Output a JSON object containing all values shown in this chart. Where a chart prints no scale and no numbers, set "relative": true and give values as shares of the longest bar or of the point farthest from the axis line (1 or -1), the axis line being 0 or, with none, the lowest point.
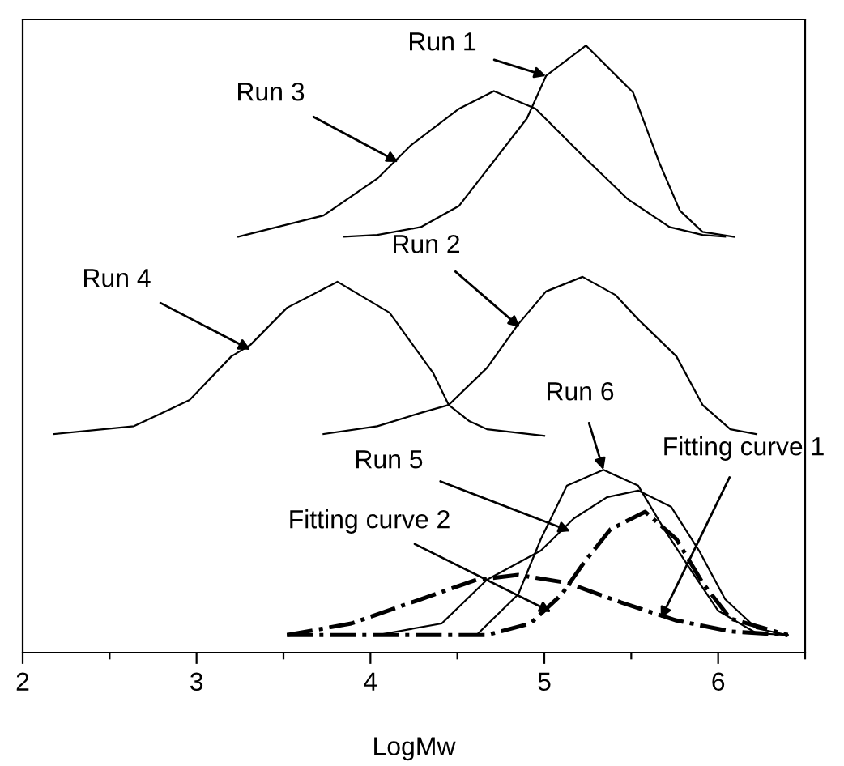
{
  "chart_data": {
    "type": "line",
    "relative": true,
    "xlabel": "LogMw",
    "xlim": [
      2,
      6.5
    ],
    "xticks": [
      2,
      {
        "value": 2.5,
        "label": null
      },
      3,
      {
        "value": 3.5,
        "label": null
      },
      4,
      {
        "value": 4.5,
        "label": null
      },
      5,
      {
        "value": 5.5,
        "label": null
      },
      6,
      {
        "value": 6.5,
        "label": null
      }
    ],
    "tick_labels": "x",
    "grid": false,
    "legend": false,
    "marker": "none",
    "series": [
      {
        "color": "#000000",
        "line_style": "solid",
        "x": [
          3.85,
          4.04,
          4.29,
          4.51,
          4.9,
          5.01,
          5.24,
          5.51,
          5.66,
          5.78,
          5.91,
          6.09
        ],
        "values": [
          0.685,
          0.688,
          0.701,
          0.736,
          0.88,
          0.95,
          1.0,
          0.923,
          0.808,
          0.728,
          0.693,
          0.685
        ]
      },
      {
        "color": "#000000",
        "line_style": "solid",
        "x": [
          3.24,
          3.73,
          4.04,
          4.23,
          4.51,
          4.71,
          4.95,
          5.23,
          5.48,
          5.72,
          5.91,
          6.04
        ],
        "values": [
          0.685,
          0.72,
          0.781,
          0.835,
          0.896,
          0.925,
          0.896,
          0.816,
          0.747,
          0.701,
          0.688,
          0.685
        ]
      },
      {
        "color": "#000000",
        "line_style": "solid",
        "x": [
          2.18,
          2.64,
          2.96,
          3.2,
          3.31,
          3.52,
          3.81,
          4.11,
          4.36,
          4.45,
          4.57,
          4.67,
          5.0
        ],
        "values": [
          0.36,
          0.373,
          0.416,
          0.488,
          0.507,
          0.568,
          0.611,
          0.56,
          0.461,
          0.408,
          0.381,
          0.368,
          0.357
        ]
      },
      {
        "color": "#000000",
        "line_style": "solid",
        "x": [
          3.73,
          4.04,
          4.29,
          4.45,
          4.67,
          4.85,
          5.01,
          5.22,
          5.41,
          5.54,
          5.76,
          5.91,
          6.07,
          6.22
        ],
        "values": [
          0.36,
          0.373,
          0.395,
          0.408,
          0.469,
          0.541,
          0.595,
          0.619,
          0.589,
          0.549,
          0.488,
          0.408,
          0.368,
          0.36
        ]
      },
      {
        "color": "#000000",
        "line_style": "solid",
        "x": [
          4.61,
          4.85,
          4.98,
          5.13,
          5.34,
          5.54,
          5.69,
          5.85,
          6.0,
          6.22,
          6.4
        ],
        "values": [
          0.029,
          0.096,
          0.187,
          0.275,
          0.301,
          0.275,
          0.203,
          0.133,
          0.069,
          0.032,
          0.029
        ]
      },
      {
        "color": "#000000",
        "line_style": "solid",
        "x": [
          4.04,
          4.41,
          4.67,
          4.98,
          5.17,
          5.36,
          5.54,
          5.73,
          5.89,
          6.04,
          6.22,
          6.4
        ],
        "values": [
          0.029,
          0.048,
          0.12,
          0.168,
          0.221,
          0.256,
          0.267,
          0.24,
          0.168,
          0.088,
          0.04,
          0.029
        ]
      },
      {
        "color": "#000000",
        "line_style": "dashdot",
        "x": [
          3.52,
          4.67,
          4.92,
          5.1,
          5.23,
          5.38,
          5.58,
          5.76,
          5.91,
          6.07,
          6.4
        ],
        "values": [
          0.029,
          0.029,
          0.048,
          0.096,
          0.149,
          0.203,
          0.232,
          0.187,
          0.115,
          0.056,
          0.029
        ]
      },
      {
        "color": "#000000",
        "line_style": "dashdot",
        "x": [
          3.52,
          3.89,
          4.29,
          4.61,
          4.85,
          5.13,
          5.44,
          5.76,
          6.07,
          6.4
        ],
        "values": [
          0.029,
          0.048,
          0.088,
          0.12,
          0.128,
          0.115,
          0.083,
          0.053,
          0.035,
          0.029
        ]
      }
    ],
    "annotations": [
      {
        "text": "Run 1",
        "x": 5.01,
        "y": 0.95
      },
      {
        "text": "Run 3",
        "x": 4.16,
        "y": 0.808
      },
      {
        "text": "Run 2",
        "x": 4.86,
        "y": 0.536
      },
      {
        "text": "Run 4",
        "x": 3.31,
        "y": 0.499
      },
      {
        "text": "Run 6",
        "x": 5.34,
        "y": 0.301
      },
      {
        "text": "Run 5",
        "x": 5.15,
        "y": 0.2
      },
      {
        "text": "Fitting curve 2",
        "x": 5.04,
        "y": 0.067
      },
      {
        "text": "Fitting curve 1",
        "x": 5.67,
        "y": 0.056
      }
    ]
  }
}
